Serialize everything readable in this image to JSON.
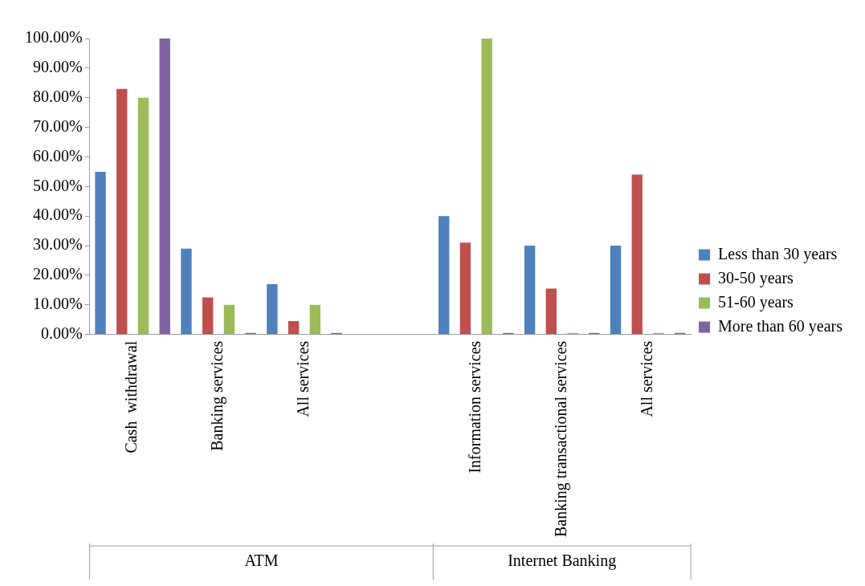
{
  "chart_data": {
    "type": "bar",
    "categories": [
      "Cash  withdrawal",
      "Banking services",
      "All services",
      null,
      "Information services",
      "Banking transactional services",
      "All services"
    ],
    "series": [
      {
        "name": "Less than 30 years",
        "color": "#4f81bd",
        "values": [
          55,
          29,
          17,
          null,
          40,
          30,
          30
        ]
      },
      {
        "name": "30-50 years",
        "color": "#c0504d",
        "values": [
          83,
          12.5,
          4.5,
          null,
          31,
          15.5,
          54
        ]
      },
      {
        "name": "51-60 years",
        "color": "#9bbb59",
        "values": [
          80,
          10,
          10,
          null,
          100,
          0,
          0
        ]
      },
      {
        "name": "More than 60 years",
        "color": "#8064a2",
        "values": [
          100,
          0,
          0,
          null,
          0,
          0,
          0
        ]
      }
    ],
    "ylim": [
      0,
      100
    ],
    "yticks": [
      {
        "value": 0,
        "label": "0.00%"
      },
      {
        "value": 10,
        "label": "10.00%"
      },
      {
        "value": 20,
        "label": "20.00%"
      },
      {
        "value": 30,
        "label": "30.00%"
      },
      {
        "value": 40,
        "label": "40.00%"
      },
      {
        "value": 50,
        "label": "50.00%"
      },
      {
        "value": 60,
        "label": "60.00%"
      },
      {
        "value": 70,
        "label": "70.00%"
      },
      {
        "value": 80,
        "label": "80.00%"
      },
      {
        "value": 90,
        "label": "90.00%"
      },
      {
        "value": 100,
        "label": "100.00%"
      }
    ],
    "annotations": [
      "ATM",
      "Internet Banking"
    ],
    "grid": false,
    "legend": "right"
  }
}
